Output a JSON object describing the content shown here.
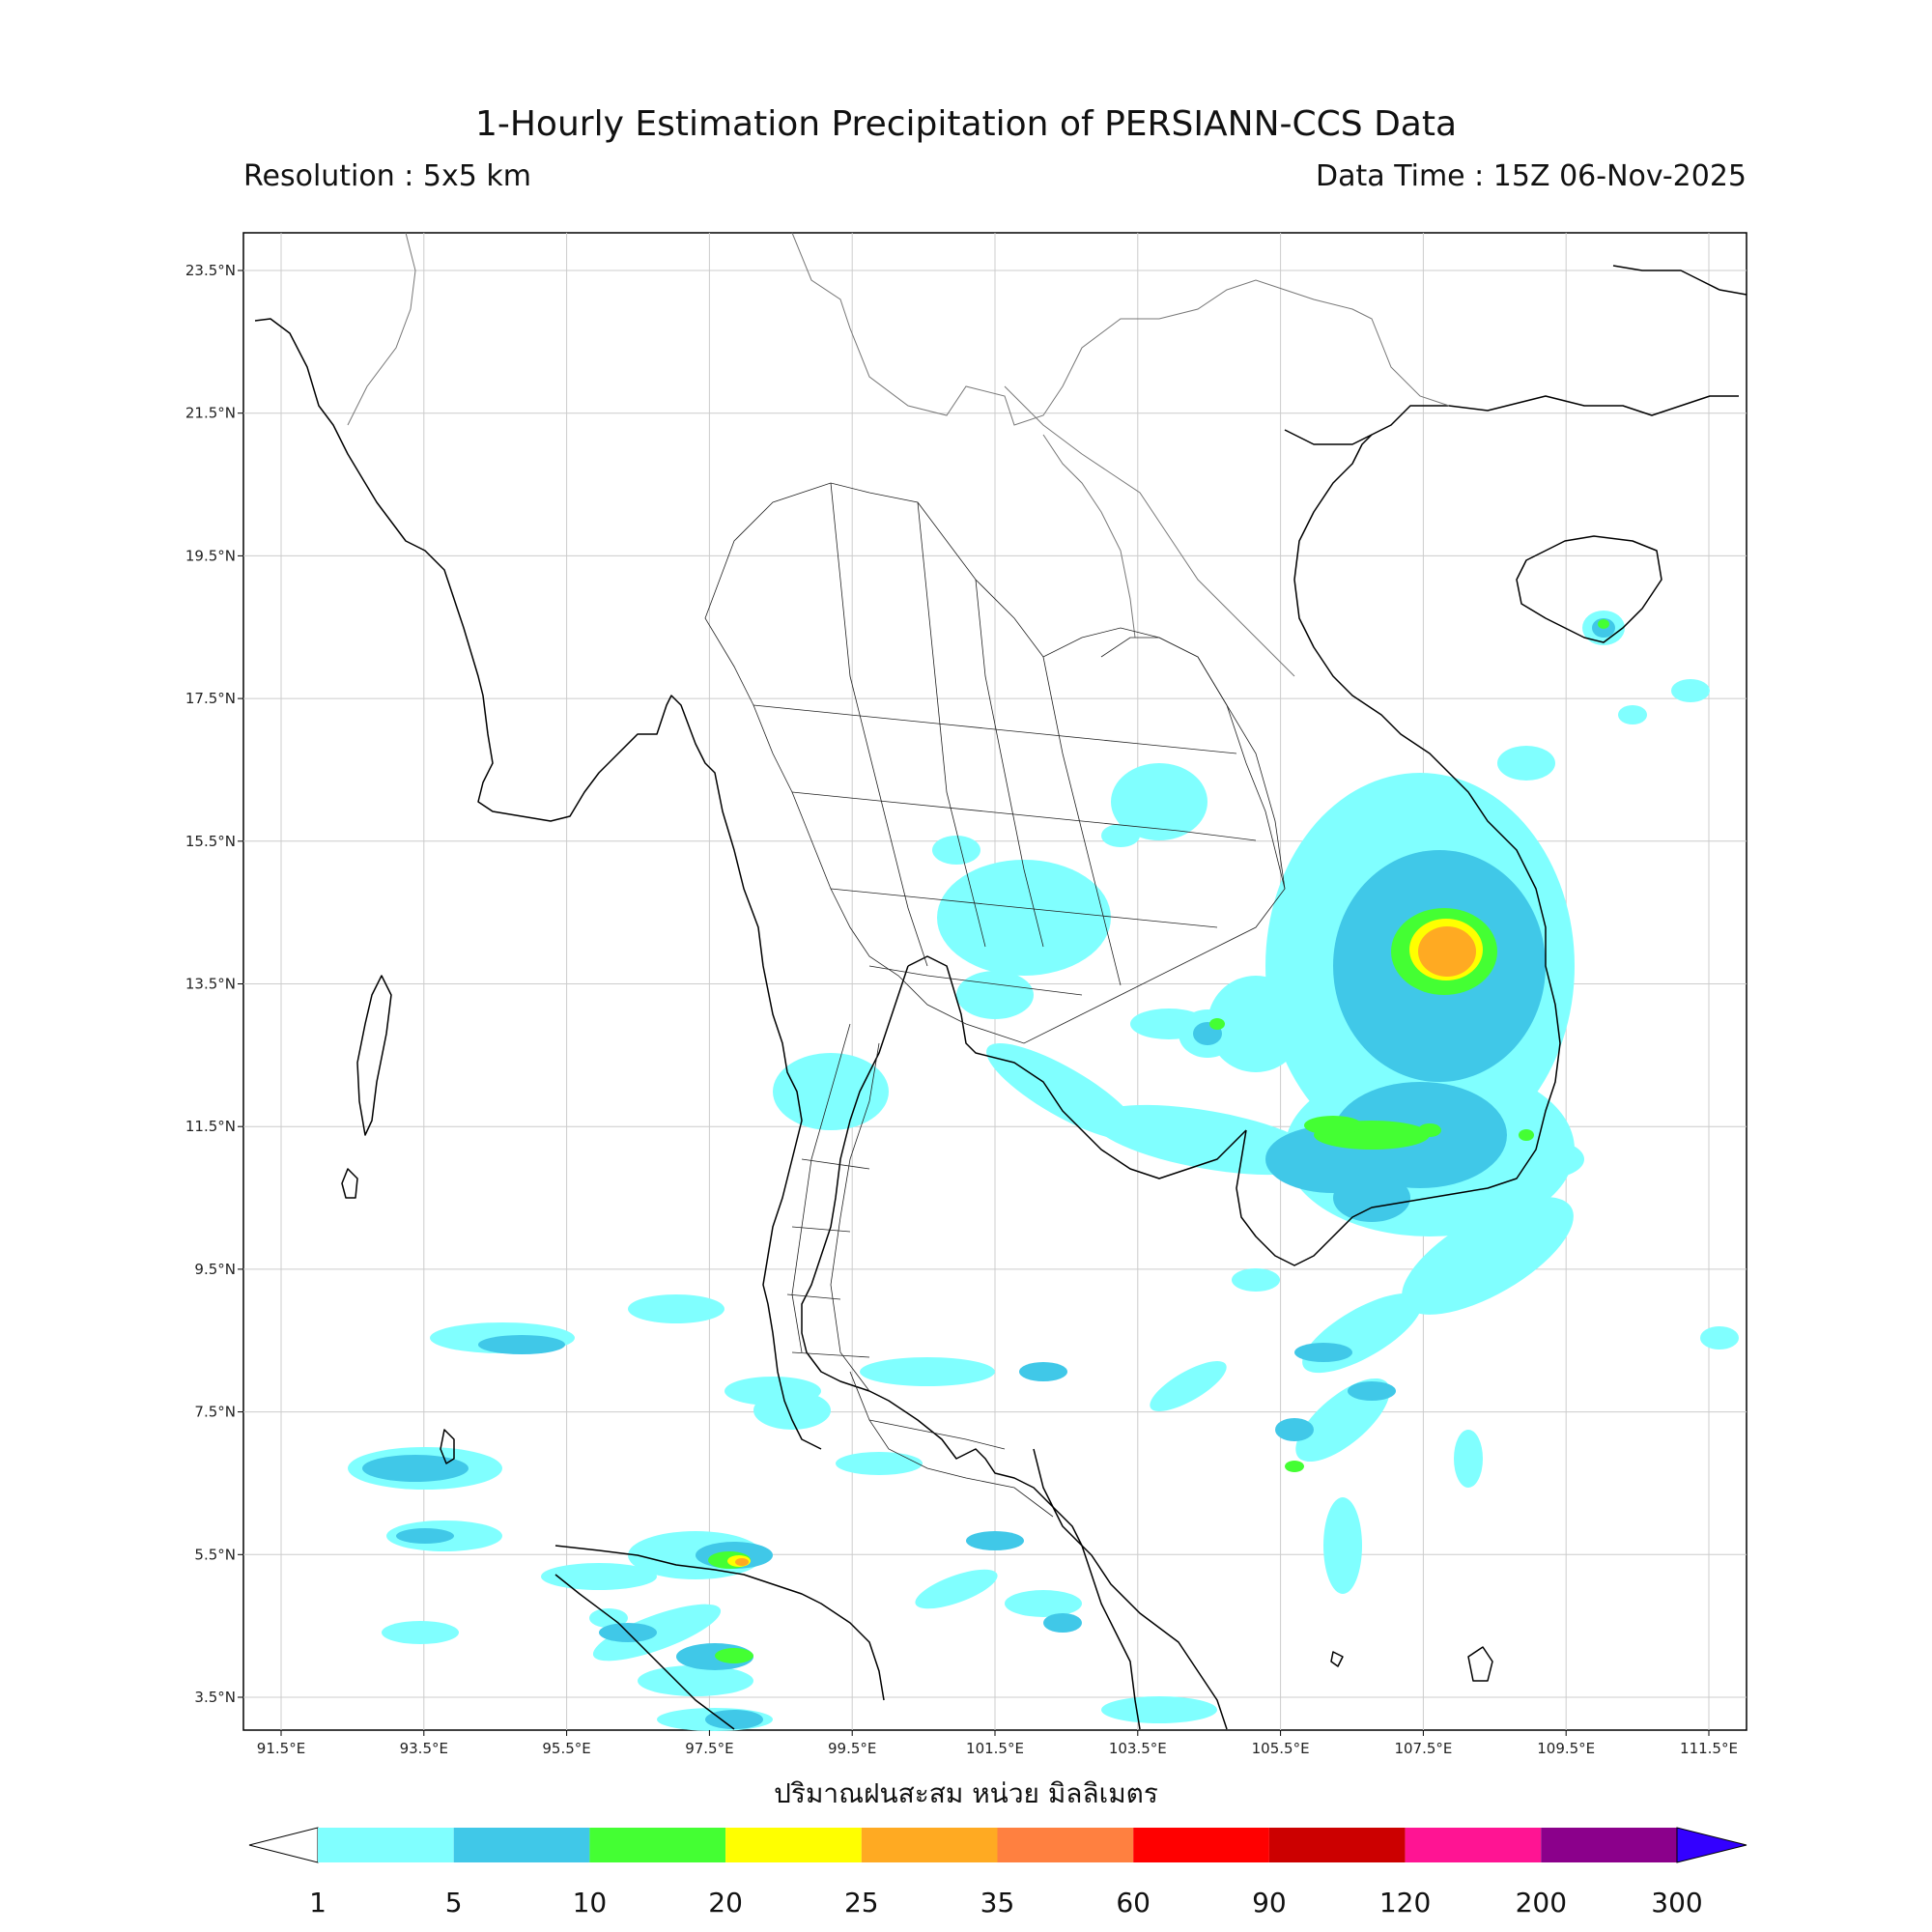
{
  "title": "1-Hourly Estimation Precipitation of PERSIANN-CCS Data",
  "resolution": "Resolution : 5x5 km",
  "data_time": "Data Time : 15Z 06-Nov-2025",
  "unit_label": "ปริมาณฝนสะสม หน่วย มิลลิเมตร",
  "lat_ticks": [
    "23.5°N",
    "21.5°N",
    "19.5°N",
    "17.5°N",
    "15.5°N",
    "13.5°N",
    "11.5°N",
    "9.5°N",
    "7.5°N",
    "5.5°N",
    "3.5°N"
  ],
  "lon_ticks": [
    "91.5°E",
    "93.5°E",
    "95.5°E",
    "97.5°E",
    "99.5°E",
    "101.5°E",
    "103.5°E",
    "105.5°E",
    "107.5°E",
    "109.5°E",
    "111.5°E"
  ],
  "colorbar": {
    "labels": [
      "1",
      "5",
      "10",
      "20",
      "25",
      "35",
      "60",
      "90",
      "120",
      "200",
      "300"
    ],
    "colors": [
      "#80ffff",
      "#40c8e8",
      "#44ff33",
      "#ffff00",
      "#ffaa22",
      "#ff8040",
      "#ff0000",
      "#cc0000",
      "#ff1493",
      "#8b008b"
    ],
    "over_color": "#3300ff",
    "under_color": "#ffffff"
  }
}
